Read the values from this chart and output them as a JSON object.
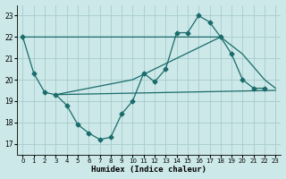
{
  "xlabel": "Humidex (Indice chaleur)",
  "xlim": [
    -0.5,
    23.5
  ],
  "ylim": [
    16.5,
    23.5
  ],
  "yticks": [
    17,
    18,
    19,
    20,
    21,
    22,
    23
  ],
  "xticks": [
    0,
    1,
    2,
    3,
    4,
    5,
    6,
    7,
    8,
    9,
    10,
    11,
    12,
    13,
    14,
    15,
    16,
    17,
    18,
    19,
    20,
    21,
    22,
    23
  ],
  "bg": "#cce8e8",
  "grid_color": "#a8cccc",
  "lc": "#1a6b6b",
  "lw": 0.9,
  "ms": 2.5,
  "line1_x": [
    0,
    1,
    2,
    3,
    4,
    5,
    6,
    7,
    8,
    9,
    10,
    11,
    12,
    13,
    14,
    15,
    16,
    17,
    18,
    19,
    20,
    21,
    22
  ],
  "line1_y": [
    22.0,
    20.3,
    19.4,
    19.3,
    18.8,
    17.9,
    17.5,
    17.2,
    17.3,
    18.4,
    19.0,
    20.3,
    19.9,
    20.5,
    22.2,
    22.2,
    23.0,
    22.7,
    22.0,
    21.2,
    20.0,
    19.6,
    19.6
  ],
  "line2_x": [
    3,
    23
  ],
  "line2_y": [
    19.3,
    19.5
  ],
  "line3_x": [
    3,
    10,
    18
  ],
  "line3_y": [
    19.3,
    20.0,
    22.0
  ],
  "line4_x": [
    0,
    18,
    20,
    21,
    22,
    23
  ],
  "line4_y": [
    22.0,
    22.0,
    21.2,
    20.6,
    20.0,
    19.6
  ]
}
